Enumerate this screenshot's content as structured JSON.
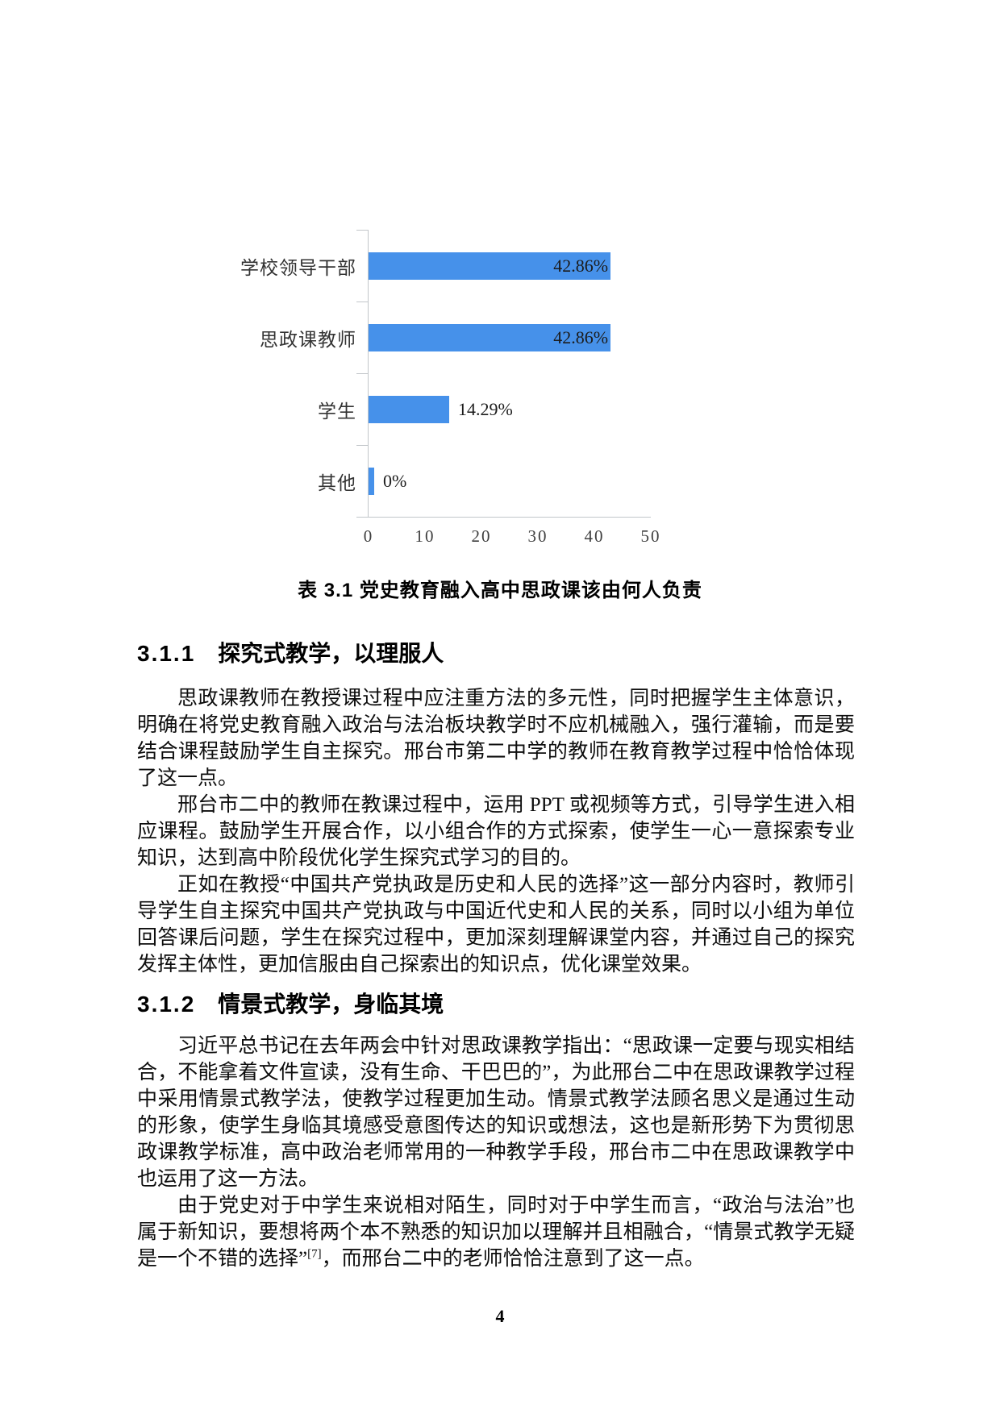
{
  "chart_data": {
    "type": "bar",
    "orientation": "horizontal",
    "title": "表 3.1 党史教育融入高中思政课该由何人负责",
    "xlabel": "",
    "ylabel": "",
    "categories": [
      "学校领导干部",
      "思政课教师",
      "学生",
      "其他"
    ],
    "values": [
      42.86,
      42.86,
      14.29,
      0
    ],
    "value_labels": [
      "42.86%",
      "42.86%",
      "14.29%",
      "0%"
    ],
    "label_inside": [
      true,
      true,
      false,
      false
    ],
    "xlim": [
      0,
      50
    ],
    "x_ticks": [
      0,
      10,
      20,
      30,
      40,
      50
    ],
    "bar_color": "#4691ea",
    "axis_color": "#c2c6ca",
    "grid": false,
    "legend": false
  },
  "caption": {
    "text": "表 3.1 党史教育融入高中思政课该由何人负责"
  },
  "sections": {
    "s311": {
      "number": "3.1.1",
      "title": "探究式教学，以理服人",
      "p1": "思政课教师在教授课过程中应注重方法的多元性，同时把握学生主体意识，明确在将党史教育融入政治与法治板块教学时不应机械融入，强行灌输，而是要结合课程鼓励学生自主探究。邢台市第二中学的教师在教育教学过程中恰恰体现了这一点。",
      "p2": "邢台市二中的教师在教课过程中，运用 PPT 或视频等方式，引导学生进入相应课程。鼓励学生开展合作，以小组合作的方式探索，使学生一心一意探索专业知识，达到高中阶段优化学生探究式学习的目的。",
      "p3": "正如在教授“中国共产党执政是历史和人民的选择”这一部分内容时，教师引导学生自主探究中国共产党执政与中国近代史和人民的关系，同时以小组为单位回答课后问题，学生在探究过程中，更加深刻理解课堂内容，并通过自己的探究发挥主体性，更加信服由自己探索出的知识点，优化课堂效果。"
    },
    "s312": {
      "number": "3.1.2",
      "title": "情景式教学，身临其境",
      "p1": "习近平总书记在去年两会中针对思政课教学指出：“思政课一定要与现实相结合，不能拿着文件宣读，没有生命、干巴巴的”，为此邢台二中在思政课教学过程中采用情景式教学法，使教学过程更加生动。情景式教学法顾名思义是通过生动的形象，使学生身临其境感受意图传达的知识或想法，这也是新形势下为贯彻思政课教学标准，高中政治老师常用的一种教学手段，邢台市二中在思政课教学中也运用了这一方法。",
      "p2_before": "由于党史对于中学生来说相对陌生，同时对于中学生而言，“政治与法治”也属于新知识，要想将两个本不熟悉的知识加以理解并且相融合，“情景式教学无疑是一个不错的选择”",
      "p2_ref": "[7]",
      "p2_after": "，而邢台二中的老师恰恰注意到了这一点。"
    }
  },
  "footer": {
    "page_number": "4"
  }
}
